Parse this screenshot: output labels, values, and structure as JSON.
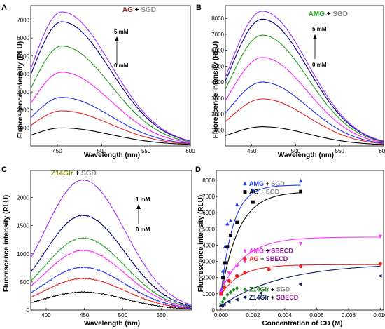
{
  "figure": {
    "panels": [
      {
        "letter": "A",
        "title_a": "AG",
        "title_plus": " + ",
        "title_b": "SGD"
      },
      {
        "letter": "B",
        "title_a": "AMG",
        "title_plus": " + ",
        "title_b": "SGD"
      },
      {
        "letter": "C",
        "title_a": "Z14Glr",
        "title_plus": " + ",
        "title_b": "SGD"
      },
      {
        "letter": "D"
      }
    ],
    "colors": {
      "dark_red": "#9b2a2a",
      "green": "#2ca52c",
      "olive": "#8a8a1a",
      "gray": "#8a8a8a",
      "purple": "#8a1a8a",
      "curves": [
        "#000000",
        "#ee2020",
        "#2030ee",
        "#ff20ff",
        "#20a020",
        "#000080",
        "#9b30ff"
      ]
    }
  },
  "chart_data": [
    {
      "type": "line",
      "panel": "A",
      "xlabel": "Wavelength (nm)",
      "ylabel": "Fluorescence intensity (RLU)",
      "xlim": [
        420,
        600
      ],
      "ylim": [
        0,
        7800
      ],
      "xticks": [
        450,
        500,
        550,
        600
      ],
      "yticks": [
        1000,
        2000,
        3000,
        4000,
        5000,
        6000,
        7000
      ],
      "arrow_top": "5 mM",
      "arrow_bottom": "0 mM",
      "peak_x": 455,
      "width_left": 33,
      "width_right": 55,
      "tail": 60,
      "series": [
        {
          "color": "#000000",
          "values": [
            0,
            1000
          ]
        },
        {
          "color": "#ee2020",
          "values": [
            0,
            1950
          ]
        },
        {
          "color": "#2030ee",
          "values": [
            0,
            2700
          ]
        },
        {
          "color": "#ff20ff",
          "values": [
            0,
            4100
          ]
        },
        {
          "color": "#20a020",
          "values": [
            0,
            5550
          ]
        },
        {
          "color": "#000080",
          "values": [
            0,
            6900
          ]
        },
        {
          "color": "#9b30ff",
          "values": [
            0,
            7450
          ]
        }
      ]
    },
    {
      "type": "line",
      "panel": "B",
      "xlabel": "Wavelength (nm)",
      "ylabel": "Fluorescence intensity (RLU)",
      "xlim": [
        420,
        600
      ],
      "ylim": [
        0,
        8800
      ],
      "xticks": [
        450,
        500,
        550,
        600
      ],
      "yticks": [
        1000,
        2000,
        3000,
        4000,
        5000,
        6000,
        7000,
        8000
      ],
      "arrow_top": "5 mM",
      "arrow_bottom": "0 mM",
      "peak_x": 462,
      "width_left": 36,
      "width_right": 52,
      "tail": 60,
      "series": [
        {
          "color": "#000000",
          "values": [
            0,
            1200
          ]
        },
        {
          "color": "#ee2020",
          "values": [
            0,
            2950
          ]
        },
        {
          "color": "#2030ee",
          "values": [
            0,
            4000
          ]
        },
        {
          "color": "#ff20ff",
          "values": [
            0,
            5550
          ]
        },
        {
          "color": "#20a020",
          "values": [
            0,
            6950
          ]
        },
        {
          "color": "#000080",
          "values": [
            0,
            7950
          ]
        },
        {
          "color": "#9b30ff",
          "values": [
            0,
            8450
          ]
        }
      ]
    },
    {
      "type": "line",
      "panel": "C",
      "xlabel": "Wavelength (nm)",
      "ylabel": "Fluorescence intensity (RLU)",
      "xlim": [
        380,
        590
      ],
      "ylim": [
        0,
        2480
      ],
      "xticks": [
        400,
        450,
        500,
        550
      ],
      "yticks": [
        0,
        500,
        1000,
        1500,
        2000
      ],
      "arrow_top": "1 mM",
      "arrow_bottom": "0 mM",
      "peak_x": 448,
      "width_left": 50,
      "width_right": 55,
      "tail": 10,
      "series": [
        {
          "color": "#000000",
          "values": [
            0,
            320
          ]
        },
        {
          "color": "#ee2020",
          "values": [
            0,
            560
          ]
        },
        {
          "color": "#2030ee",
          "values": [
            0,
            760
          ]
        },
        {
          "color": "#ff20ff",
          "values": [
            0,
            1060
          ]
        },
        {
          "color": "#20a020",
          "values": [
            0,
            1280
          ]
        },
        {
          "color": "#000080",
          "values": [
            0,
            1680
          ]
        },
        {
          "color": "#9b30ff",
          "values": [
            0,
            2310
          ]
        }
      ]
    },
    {
      "type": "scatter",
      "panel": "D",
      "xlabel": "Concentration of CD (M)",
      "ylabel": "Fluorescence intensity (RLU)",
      "xlim": [
        -0.0003,
        0.0102
      ],
      "ylim": [
        0,
        8600
      ],
      "xticks": [
        0,
        0.002,
        0.004,
        0.006,
        0.008,
        0.01
      ],
      "xtick_labels": [
        "0.000",
        "0.002",
        "0.004",
        "0.006",
        "0.008",
        "0.010"
      ],
      "yticks": [
        0,
        1000,
        2000,
        3000,
        4000,
        5000,
        6000,
        7000,
        8000
      ],
      "series": [
        {
          "name_a": "AMG",
          "name_b": "SGD",
          "marker": "triangle-up",
          "color": "#1e3cff",
          "b_color": "#8a8a8a",
          "x": [
            0,
            0.00012,
            0.00025,
            0.0004,
            0.0006,
            0.001,
            0.002,
            0.005
          ],
          "y": [
            1200,
            2400,
            3900,
            5300,
            5500,
            6500,
            7400,
            7950
          ],
          "fit": {
            "y0": 1000,
            "max": 7700,
            "k": 1300
          }
        },
        {
          "name_a": "AG",
          "name_b": "SGD",
          "marker": "square",
          "color": "#000000",
          "b_color": "#8a8a8a",
          "x": [
            0,
            0.00012,
            0.00025,
            0.0004,
            0.0006,
            0.001,
            0.002,
            0.005
          ],
          "y": [
            1000,
            2000,
            2900,
            3900,
            4600,
            5400,
            6650,
            7300
          ],
          "fit": {
            "y0": 900,
            "max": 7300,
            "k": 900
          }
        },
        {
          "name_a": "AMG",
          "name_b": "SBECD",
          "marker": "triangle-down",
          "color": "#ff30ff",
          "b_color": "#8a1a8a",
          "x": [
            0,
            0.0002,
            0.0005,
            0.001,
            0.0015,
            0.003,
            0.005,
            0.01
          ],
          "y": [
            1150,
            1700,
            2300,
            2700,
            3000,
            3650,
            4100,
            4550
          ],
          "fit": {
            "y0": 1150,
            "max": 4500,
            "k": 680
          }
        },
        {
          "name_a": "AG",
          "name_b": "SBECD",
          "marker": "circle",
          "color": "#ee2020",
          "b_color": "#8a1a8a",
          "x": [
            0,
            0.0002,
            0.0005,
            0.001,
            0.0015,
            0.003,
            0.005,
            0.01
          ],
          "y": [
            1000,
            1400,
            1800,
            2100,
            2300,
            2500,
            2700,
            2850
          ],
          "fit": {
            "y0": 950,
            "max": 2800,
            "k": 820
          }
        },
        {
          "name_a": "Z14Glr",
          "name_b": "SGD",
          "marker": "diamond",
          "color": "#1e8a1e",
          "b_color": "#8a8a8a",
          "x": [
            0,
            0.0001,
            0.0002,
            0.0004,
            0.0006,
            0.0008,
            0.001
          ],
          "y": [
            300,
            500,
            700,
            950,
            1100,
            1250,
            1350
          ],
          "fit": null
        },
        {
          "name_a": "Z14Glr",
          "name_b": "SBECD",
          "marker": "triangle-left",
          "color": "#0a1a60",
          "b_color": "#8a1a8a",
          "x": [
            0,
            0.0001,
            0.0002,
            0.0005,
            0.001,
            0.0015,
            0.0025,
            0.005,
            0.01
          ],
          "y": [
            250,
            300,
            350,
            500,
            650,
            800,
            1050,
            1600,
            2100
          ],
          "fit": {
            "y0": 260,
            "max": 2900,
            "k": 260
          }
        }
      ]
    }
  ]
}
